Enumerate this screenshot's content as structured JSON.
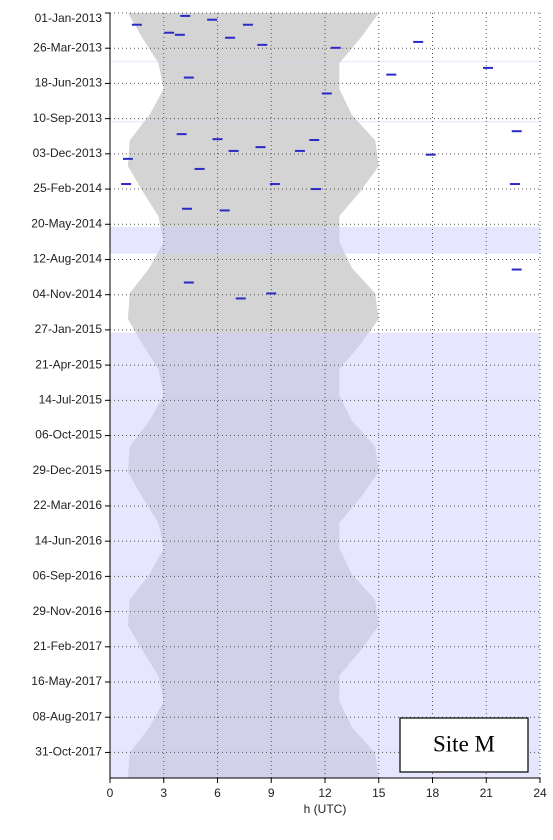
{
  "chart_data": {
    "type": "scatter",
    "annotation": "Site M",
    "xlabel": "h (UTC)",
    "xlim": [
      0,
      24
    ],
    "xticks": [
      0,
      3,
      6,
      9,
      12,
      15,
      18,
      21,
      24
    ],
    "ylim": [
      "2013-01-01",
      "2017-12-31"
    ],
    "yticks": [
      {
        "value": "2013-01-01",
        "label": "01-Jan-2013"
      },
      {
        "value": "2013-03-26",
        "label": "26-Mar-2013"
      },
      {
        "value": "2013-06-18",
        "label": "18-Jun-2013"
      },
      {
        "value": "2013-09-10",
        "label": "10-Sep-2013"
      },
      {
        "value": "2013-12-03",
        "label": "03-Dec-2013"
      },
      {
        "value": "2014-02-25",
        "label": "25-Feb-2014"
      },
      {
        "value": "2014-05-20",
        "label": "20-May-2014"
      },
      {
        "value": "2014-08-12",
        "label": "12-Aug-2014"
      },
      {
        "value": "2014-11-04",
        "label": "04-Nov-2014"
      },
      {
        "value": "2015-01-27",
        "label": "27-Jan-2015"
      },
      {
        "value": "2015-04-21",
        "label": "21-Apr-2015"
      },
      {
        "value": "2015-07-14",
        "label": "14-Jul-2015"
      },
      {
        "value": "2015-10-06",
        "label": "06-Oct-2015"
      },
      {
        "value": "2015-12-29",
        "label": "29-Dec-2015"
      },
      {
        "value": "2016-03-22",
        "label": "22-Mar-2016"
      },
      {
        "value": "2016-06-14",
        "label": "14-Jun-2016"
      },
      {
        "value": "2016-09-06",
        "label": "06-Sep-2016"
      },
      {
        "value": "2016-11-29",
        "label": "29-Nov-2016"
      },
      {
        "value": "2017-02-21",
        "label": "21-Feb-2017"
      },
      {
        "value": "2017-05-16",
        "label": "16-May-2017"
      },
      {
        "value": "2017-08-08",
        "label": "08-Aug-2017"
      },
      {
        "value": "2017-10-31",
        "label": "31-Oct-2017"
      }
    ],
    "grid": true,
    "daylight": {
      "color": "#d4d4d4",
      "dates": [
        "2013-01-01",
        "2013-03-01",
        "2013-05-01",
        "2013-07-01",
        "2013-09-01",
        "2013-11-01",
        "2014-01-01",
        "2014-03-01",
        "2014-05-01",
        "2014-07-01",
        "2014-09-01",
        "2014-11-01",
        "2015-01-01",
        "2015-03-01",
        "2015-05-01",
        "2015-07-01",
        "2015-09-01",
        "2015-11-01",
        "2016-01-01",
        "2016-03-01",
        "2016-05-01",
        "2016-07-01",
        "2016-09-01",
        "2016-11-01",
        "2017-01-01",
        "2017-03-01",
        "2017-05-01",
        "2017-07-01",
        "2017-09-01",
        "2017-11-01",
        "2017-12-31"
      ],
      "sunrise": [
        1.0,
        1.8,
        2.7,
        3.0,
        2.2,
        1.1,
        1.0,
        1.8,
        2.7,
        3.0,
        2.2,
        1.1,
        1.0,
        1.8,
        2.7,
        3.0,
        2.2,
        1.1,
        1.0,
        1.8,
        2.7,
        3.0,
        2.2,
        1.1,
        1.0,
        1.8,
        2.7,
        3.0,
        2.2,
        1.1,
        1.0
      ],
      "sunset": [
        15.0,
        14.0,
        12.8,
        12.8,
        13.5,
        14.8,
        15.0,
        14.0,
        12.8,
        12.8,
        13.5,
        14.8,
        15.0,
        14.0,
        12.8,
        12.8,
        13.5,
        14.8,
        15.0,
        14.0,
        12.8,
        12.8,
        13.5,
        14.8,
        15.0,
        14.0,
        12.8,
        12.8,
        13.5,
        14.8,
        15.0
      ]
    },
    "gaps": {
      "color": "rgba(205,205,255,0.5)",
      "start": [
        "2013-04-26",
        "2013-09-16",
        "2014-05-26",
        "2015-02-03"
      ],
      "end": [
        "2013-04-28",
        "2013-09-17",
        "2014-07-29",
        "2017-12-31"
      ]
    },
    "series": [
      {
        "color": "#2a2ac8",
        "x": [
          "2013-01-08",
          "2013-01-17",
          "2013-01-29",
          "2013-01-29",
          "2013-02-17",
          "2013-02-22",
          "2013-03-01",
          "2013-03-18",
          "2013-03-25",
          "2013-03-11",
          "2013-06-04",
          "2013-07-12",
          "2013-05-28",
          "2013-05-12",
          "2013-10-17",
          "2013-10-29",
          "2013-11-17",
          "2013-11-26",
          "2013-11-26",
          "2013-12-15",
          "2013-10-31",
          "2014-01-08",
          "2014-02-13",
          "2014-02-25",
          "2014-04-17",
          "2014-04-13",
          "2014-02-13",
          "2014-02-13",
          "2013-12-05",
          "2013-10-10",
          "2014-10-06",
          "2014-11-01",
          "2014-11-13",
          "2014-09-05"
        ],
        "values": [
          4.2,
          5.7,
          1.5,
          7.7,
          3.3,
          3.9,
          6.7,
          8.5,
          12.6,
          17.2,
          4.4,
          12.1,
          15.7,
          21.1,
          4.0,
          6.0,
          8.4,
          10.6,
          6.9,
          1.0,
          11.4,
          5.0,
          9.2,
          11.5,
          6.4,
          4.3,
          0.9,
          22.6,
          17.9,
          22.7,
          4.4,
          9.0,
          7.3,
          22.7
        ]
      }
    ]
  }
}
